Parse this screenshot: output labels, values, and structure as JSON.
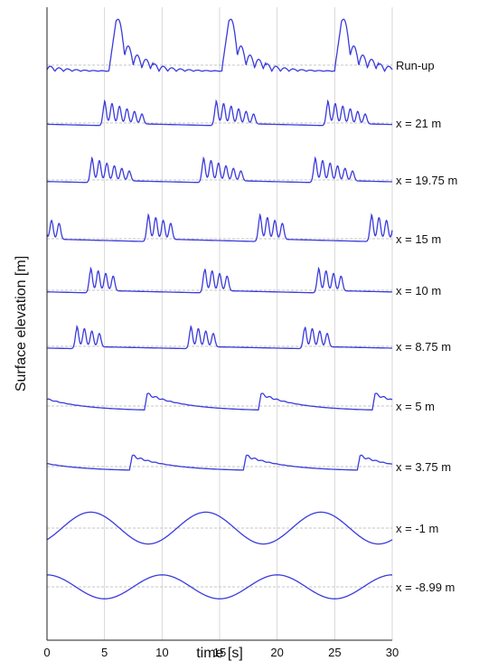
{
  "chart_data": {
    "type": "line",
    "xlabel": "time [s]",
    "ylabel": "Surface elevation [m]",
    "xlim": [
      0,
      30
    ],
    "x_ticks": [
      0,
      5,
      10,
      15,
      20,
      25,
      30
    ],
    "grid": "vertical",
    "series": [
      {
        "name": "Run-up",
        "kind": "runup",
        "first_peak": 6.0,
        "period": 9.8,
        "amp": 1.0,
        "lead": 1
      },
      {
        "name": "x = 21 m",
        "kind": "fission",
        "first_peak": 5.0,
        "period": 9.7,
        "amp": 0.55,
        "n_peaks": 6,
        "lead": 0
      },
      {
        "name": "x = 19.75 m",
        "kind": "fission",
        "first_peak": 3.9,
        "period": 9.7,
        "amp": 0.55,
        "n_peaks": 6,
        "lead": 0
      },
      {
        "name": "x = 15 m",
        "kind": "fission",
        "first_peak": 8.8,
        "period": 9.7,
        "amp": 0.6,
        "n_peaks": 4,
        "lead": 1
      },
      {
        "name": "x = 10 m",
        "kind": "fission",
        "first_peak": 3.8,
        "period": 9.9,
        "amp": 0.55,
        "n_peaks": 4,
        "lead": 0
      },
      {
        "name": "x = 8.75 m",
        "kind": "fission",
        "first_peak": 2.6,
        "period": 9.9,
        "amp": 0.5,
        "n_peaks": 4,
        "lead": 0
      },
      {
        "name": "x = 5 m",
        "kind": "bore",
        "first_peak": 8.7,
        "period": 9.9,
        "amp": 0.5,
        "lead": 0
      },
      {
        "name": "x = 3.75 m",
        "kind": "bore",
        "first_peak": 7.4,
        "period": 9.9,
        "amp": 0.45,
        "lead": 0
      },
      {
        "name": "x = -1 m",
        "kind": "sine",
        "first_peak": 3.8,
        "period": 10.0,
        "amp": 0.4,
        "lead": 0
      },
      {
        "name": "x = -8.99 m",
        "kind": "sine",
        "first_peak": 10.0,
        "period": 10.0,
        "amp": 0.3,
        "lead": 0
      }
    ]
  }
}
